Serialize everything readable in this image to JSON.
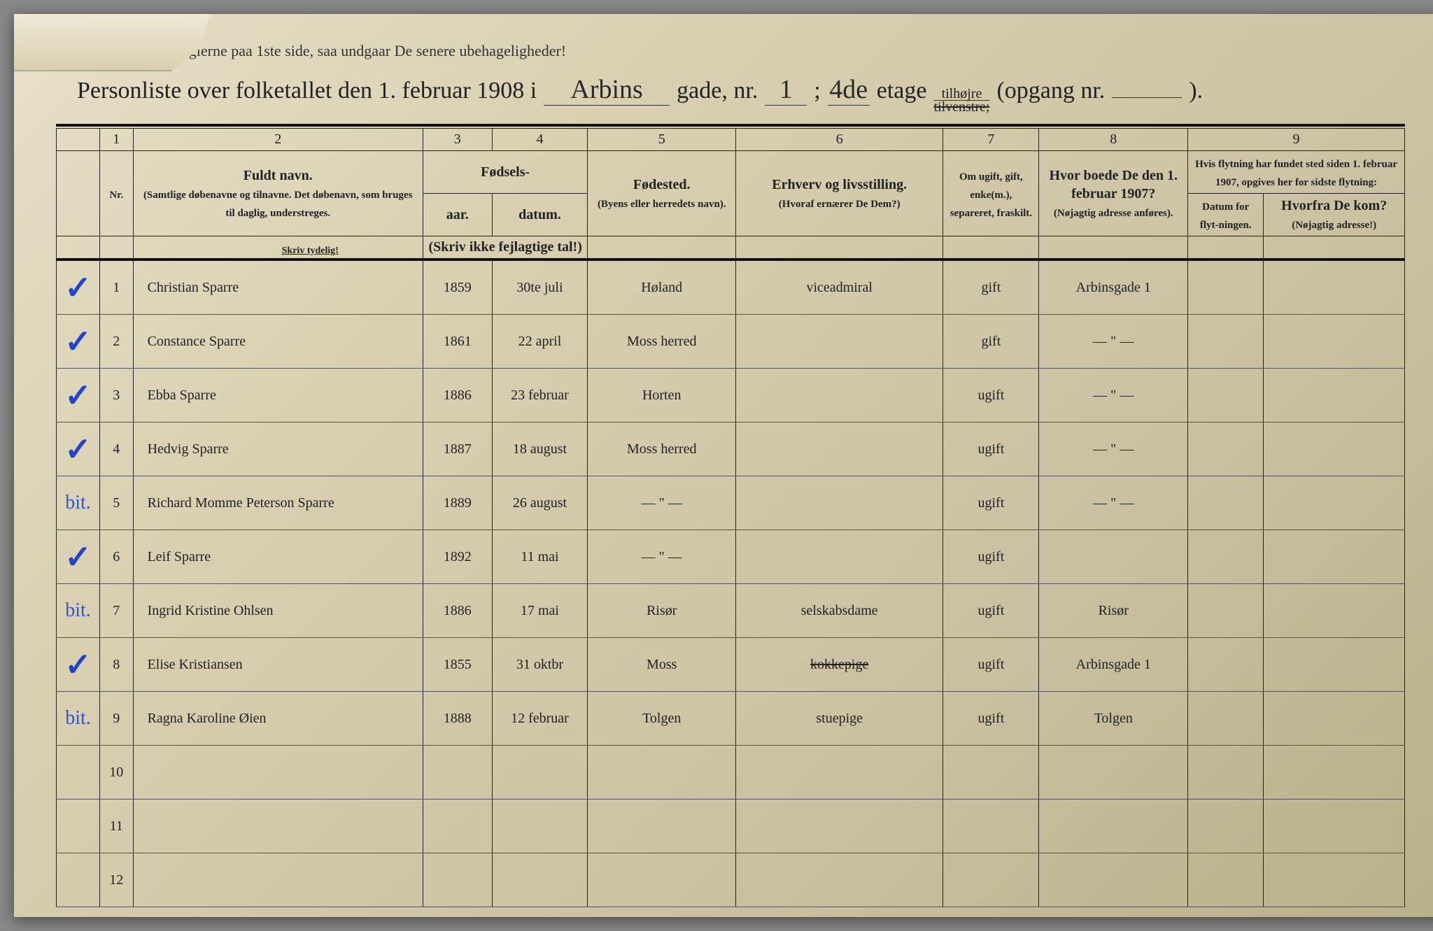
{
  "instruction": "eglerne paa 1ste side, saa undgaar De senere ubehageligheder!",
  "title": {
    "prefix": "Personliste over folketallet den 1. februar 1908 i",
    "street_script": "Arbins",
    "street_label": "gade, nr.",
    "street_nr": "1",
    "sep": ";",
    "floor_script": "4de",
    "floor_label": "etage",
    "side_keep": "tilhøjre",
    "side_struck": "tilvenstre;",
    "opgang": "(opgang nr.",
    "opgang_end": ")."
  },
  "colnums": [
    "1",
    "2",
    "3",
    "4",
    "5",
    "6",
    "7",
    "8",
    "9"
  ],
  "headers": {
    "nr": "Nr.",
    "fuldt_navn": "Fuldt navn.",
    "fuldt_sub": "(Samtlige døbenavne og tilnavne. Det døbenavn, som bruges til daglig, understreges.",
    "fodsels": "Fødsels-",
    "aar": "aar.",
    "datum": "datum.",
    "skriv_ikke": "(Skriv ikke fejlagtige tal!)",
    "fodested": "Fødested.",
    "fodested_sub": "(Byens eller herredets navn).",
    "erhverv": "Erhverv og livsstilling.",
    "erhverv_sub": "(Hvoraf ernærer De Dem?)",
    "status": "Om ugift, gift, enke(m.), separeret, fraskilt.",
    "addr1907": "Hvor boede De den 1. februar 1907?",
    "addr_sub": "(Nøjagtig adresse anføres).",
    "flyt_top": "Hvis flytning har fundet sted siden 1. februar 1907, opgives her for sidste flytning:",
    "flyt_datum": "Datum for flyt-ningen.",
    "flyt_hvorfra": "Hvorfra De kom?",
    "flyt_hvorfra_sub": "(Nøjagtig adresse!)",
    "skriv_tydelig": "Skriv tydelig!"
  },
  "rows": [
    {
      "n": "1",
      "name": "Christian Sparre",
      "year": "1859",
      "date": "30te juli",
      "place": "Høland",
      "occ": "viceadmiral",
      "status": "gift",
      "addr": "Arbinsgade 1",
      "movedate": "",
      "movefrom": "",
      "mark": "✓"
    },
    {
      "n": "2",
      "name": "Constance Sparre",
      "year": "1861",
      "date": "22 april",
      "place": "Moss herred",
      "occ": "",
      "status": "gift",
      "addr": "— \" —",
      "movedate": "",
      "movefrom": "",
      "mark": "✓"
    },
    {
      "n": "3",
      "name": "Ebba Sparre",
      "year": "1886",
      "date": "23 februar",
      "place": "Horten",
      "occ": "",
      "status": "ugift",
      "addr": "— \" —",
      "movedate": "",
      "movefrom": "",
      "mark": "✓"
    },
    {
      "n": "4",
      "name": "Hedvig Sparre",
      "year": "1887",
      "date": "18 august",
      "place": "Moss herred",
      "occ": "",
      "status": "ugift",
      "addr": "— \" —",
      "movedate": "",
      "movefrom": "",
      "mark": "✓"
    },
    {
      "n": "5",
      "name": "Richard Momme Peterson Sparre",
      "year": "1889",
      "date": "26 august",
      "place": "— \" —",
      "occ": "",
      "status": "ugift",
      "addr": "— \" —",
      "movedate": "",
      "movefrom": "",
      "mark": "bit."
    },
    {
      "n": "6",
      "name": "Leif Sparre",
      "year": "1892",
      "date": "11 mai",
      "place": "— \" —",
      "occ": "",
      "status": "ugift",
      "addr": "",
      "movedate": "",
      "movefrom": "",
      "mark": "✓"
    },
    {
      "n": "7",
      "name": "Ingrid Kristine Ohlsen",
      "year": "1886",
      "date": "17 mai",
      "place": "Risør",
      "occ": "selskabsdame",
      "status": "ugift",
      "addr": "Risør",
      "movedate": "",
      "movefrom": "",
      "mark": "bit."
    },
    {
      "n": "8",
      "name": "Elise Kristiansen",
      "year": "1855",
      "date": "31 oktbr",
      "place": "Moss",
      "occ": "kokkepige",
      "status": "ugift",
      "addr": "Arbinsgade 1",
      "movedate": "",
      "movefrom": "",
      "mark": "✓",
      "struck_occ": true
    },
    {
      "n": "9",
      "name": "Ragna Karoline Øien",
      "year": "1888",
      "date": "12 februar",
      "place": "Tolgen",
      "occ": "stuepige",
      "status": "ugift",
      "addr": "Tolgen",
      "movedate": "",
      "movefrom": "",
      "mark": "bit."
    },
    {
      "n": "10",
      "name": "",
      "year": "",
      "date": "",
      "place": "",
      "occ": "",
      "status": "",
      "addr": "",
      "movedate": "",
      "movefrom": "",
      "mark": ""
    },
    {
      "n": "11",
      "name": "",
      "year": "",
      "date": "",
      "place": "",
      "occ": "",
      "status": "",
      "addr": "",
      "movedate": "",
      "movefrom": "",
      "mark": ""
    },
    {
      "n": "12",
      "name": "",
      "year": "",
      "date": "",
      "place": "",
      "occ": "",
      "status": "",
      "addr": "",
      "movedate": "",
      "movefrom": "",
      "mark": ""
    }
  ],
  "colors": {
    "paper": "#d8d0b0",
    "ink": "#222222",
    "blue_pencil": "#2244cc"
  }
}
